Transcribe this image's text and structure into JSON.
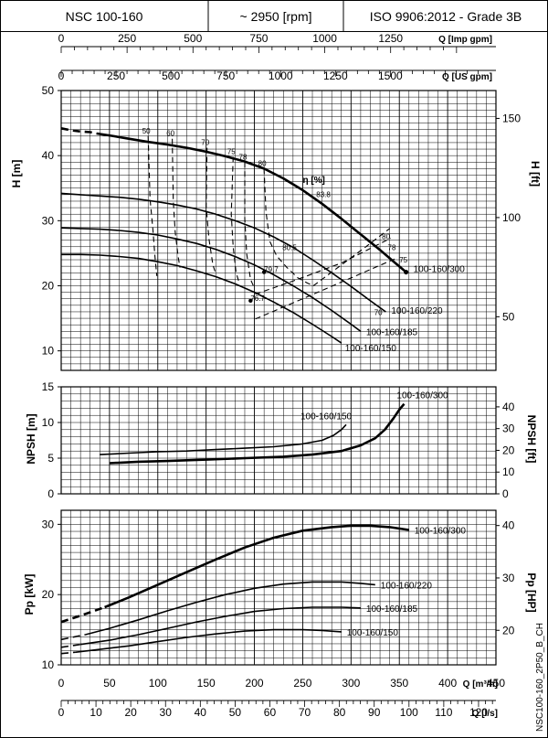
{
  "header": {
    "model": "NSC 100-160",
    "speed": "~ 2950 [rpm]",
    "standard": "ISO 9906:2012 - Grade 3B"
  },
  "side_code": "NSC100-160_2P50_B_CH",
  "chart_data": [
    {
      "id": "head",
      "type": "line",
      "xlabel": "Q [m³/h]",
      "ylabel": "H [m]",
      "ylabel_right": "H [ft]",
      "xlim": [
        0,
        450
      ],
      "ylim": [
        7,
        50
      ],
      "yticks": [
        10,
        20,
        30,
        40,
        50
      ],
      "yticks_right": [
        50,
        100,
        150
      ],
      "top_axis_imp": {
        "label": "Q [Imp gpm]",
        "ticks": [
          0,
          250,
          500,
          750,
          1000,
          1250
        ]
      },
      "top_axis_us": {
        "label": "Q [US gpm]",
        "ticks": [
          0,
          250,
          500,
          750,
          1000,
          1250,
          1500
        ]
      },
      "grid": true,
      "series": [
        {
          "name": "100-160/300",
          "dashed_until": 37,
          "x": [
            0,
            10,
            20,
            30,
            37,
            50,
            70,
            90,
            110,
            130,
            150,
            170,
            190,
            210,
            230,
            250,
            270,
            290,
            310,
            330,
            345,
            357
          ],
          "y": [
            44.2,
            43.9,
            43.7,
            43.6,
            43.4,
            43.1,
            42.6,
            42.1,
            41.7,
            41.2,
            40.6,
            39.9,
            39.1,
            38.0,
            36.5,
            34.7,
            32.6,
            30.3,
            27.9,
            25.5,
            23.6,
            22.1
          ]
        },
        {
          "name": "100-160/220",
          "x": [
            0,
            20,
            40,
            60,
            80,
            100,
            120,
            140,
            160,
            180,
            200,
            220,
            240,
            260,
            280,
            300,
            320,
            336
          ],
          "y": [
            34.2,
            34.0,
            33.8,
            33.6,
            33.3,
            32.9,
            32.4,
            31.8,
            31.0,
            30.0,
            28.9,
            27.5,
            25.9,
            24.0,
            22.0,
            19.9,
            17.7,
            16.0
          ]
        },
        {
          "name": "100-160/185",
          "x": [
            0,
            20,
            40,
            60,
            80,
            100,
            120,
            140,
            160,
            180,
            200,
            220,
            240,
            260,
            280,
            300,
            310
          ],
          "y": [
            28.9,
            28.8,
            28.7,
            28.5,
            28.2,
            27.8,
            27.2,
            26.5,
            25.6,
            24.5,
            23.2,
            21.7,
            20.0,
            18.2,
            16.2,
            14.1,
            13.0
          ]
        },
        {
          "name": "100-160/150",
          "x": [
            0,
            20,
            40,
            60,
            80,
            100,
            120,
            140,
            160,
            180,
            200,
            220,
            240,
            260,
            280,
            290
          ],
          "y": [
            24.8,
            24.8,
            24.7,
            24.5,
            24.2,
            23.7,
            23.1,
            22.3,
            21.4,
            20.3,
            19.0,
            17.5,
            15.9,
            14.1,
            12.2,
            11.2
          ]
        }
      ],
      "efficiency_label": "η [%]",
      "efficiency_curves": [
        {
          "label": "50",
          "x": [
            90,
            92,
            95,
            97,
            99
          ],
          "y": [
            43.0,
            33.3,
            28.5,
            24.6,
            21.5
          ]
        },
        {
          "label": "60",
          "x": [
            115,
            116,
            118,
            121,
            123
          ],
          "y": [
            42.6,
            33.1,
            28.3,
            24.5,
            22.8
          ]
        },
        {
          "label": "70",
          "x": [
            151,
            150,
            153,
            157,
            160
          ],
          "y": [
            41.2,
            32.2,
            27.2,
            23.2,
            21.9
          ]
        },
        {
          "label": "75",
          "x": [
            178,
            176,
            178,
            181,
            184
          ],
          "y": [
            39.8,
            31.0,
            26.0,
            22.0,
            20.6
          ]
        },
        {
          "label": "78",
          "x": [
            190,
            190,
            192,
            196,
            200
          ],
          "y": [
            39.0,
            30.3,
            24.9,
            21.0,
            19.6
          ]
        },
        {
          "label": "80",
          "x": [
            210,
            212,
            216,
            223,
            233,
            245,
            255,
            261
          ],
          "y": [
            38.0,
            31.4,
            26.8,
            24.6,
            22.9,
            21.2,
            20.4,
            20.0
          ]
        },
        {
          "label": "80",
          "x": [
            261,
            290,
            318,
            340
          ],
          "y": [
            20.0,
            23.2,
            26.3,
            28.8
          ]
        },
        {
          "label": "78",
          "x": [
            201,
            245,
            290,
            341
          ],
          "y": [
            18.7,
            21.0,
            23.5,
            27.3
          ]
        },
        {
          "label": "75",
          "x": [
            201,
            250,
            300,
            348
          ],
          "y": [
            14.9,
            18.0,
            21.2,
            24.3
          ]
        }
      ],
      "efficiency_points": [
        {
          "label": "83.8",
          "x": [
            264
          ],
          "y": [
            33.6
          ]
        },
        {
          "label": "80.5",
          "x": [
            229
          ],
          "y": [
            25.5
          ]
        },
        {
          "label": "79.7",
          "x": [
            210
          ],
          "y": [
            22.1
          ]
        },
        {
          "label": "76.7",
          "x": [
            196
          ],
          "y": [
            17.7
          ]
        },
        {
          "label": "80",
          "x": [
            332
          ],
          "y": [
            27.2
          ]
        },
        {
          "label": "78",
          "x": [
            338
          ],
          "y": [
            25.5
          ]
        },
        {
          "label": "75",
          "x": [
            350
          ],
          "y": [
            23.6
          ]
        },
        {
          "label": "70",
          "x": [
            324
          ],
          "y": [
            15.5
          ]
        }
      ]
    },
    {
      "id": "npsh",
      "type": "line",
      "xlabel": "Q [m³/h]",
      "ylabel": "NPSH [m]",
      "ylabel_right": "NPSH [ft]",
      "xlim": [
        0,
        450
      ],
      "ylim": [
        0,
        15
      ],
      "yticks": [
        0,
        5,
        10,
        15
      ],
      "yticks_right": [
        0,
        10,
        20,
        30,
        40
      ],
      "grid": true,
      "series": [
        {
          "name": "100-160/150",
          "x": [
            40,
            70,
            100,
            130,
            160,
            190,
            220,
            250,
            270,
            282,
            290,
            295
          ],
          "y": [
            5.5,
            5.7,
            5.9,
            6.0,
            6.2,
            6.4,
            6.6,
            7.0,
            7.5,
            8.2,
            9.0,
            9.7
          ]
        },
        {
          "name": "100-160/300",
          "x": [
            50,
            80,
            110,
            150,
            190,
            230,
            260,
            290,
            310,
            325,
            335,
            344,
            350,
            355
          ],
          "y": [
            4.3,
            4.5,
            4.6,
            4.8,
            5.0,
            5.2,
            5.5,
            6.0,
            6.8,
            7.8,
            9.0,
            10.6,
            11.8,
            12.6
          ]
        }
      ]
    },
    {
      "id": "power",
      "type": "line",
      "xlabel": "Q [m³/h]",
      "ylabel": "Pp [kW]",
      "ylabel_right": "Pp [HP]",
      "xlim": [
        0,
        450
      ],
      "ylim": [
        10,
        32
      ],
      "xticks": [
        0,
        50,
        100,
        150,
        200,
        250,
        300,
        350,
        400,
        450
      ],
      "yticks": [
        10,
        20,
        30
      ],
      "yticks_right": [
        20,
        30,
        40
      ],
      "bottom_axis_ls": {
        "label": "Q [l/s]",
        "ticks": [
          0,
          10,
          20,
          30,
          40,
          50,
          60,
          70,
          80,
          90,
          100,
          110,
          120
        ]
      },
      "grid": true,
      "series": [
        {
          "name": "100-160/300",
          "dashed_until": 45,
          "x": [
            0,
            20,
            45,
            70,
            100,
            130,
            160,
            190,
            220,
            250,
            280,
            300,
            320,
            340,
            360
          ],
          "y": [
            16.1,
            17.0,
            18.2,
            19.6,
            21.4,
            23.2,
            25.0,
            26.7,
            28.1,
            29.1,
            29.6,
            29.8,
            29.8,
            29.6,
            29.2
          ]
        },
        {
          "name": "100-160/220",
          "dashed_until": 25,
          "x": [
            0,
            25,
            50,
            80,
            110,
            140,
            170,
            200,
            230,
            260,
            290,
            310,
            325
          ],
          "y": [
            13.6,
            14.3,
            15.2,
            16.4,
            17.7,
            18.9,
            20.0,
            20.9,
            21.5,
            21.8,
            21.8,
            21.6,
            21.4
          ]
        },
        {
          "name": "100-160/185",
          "dashed_until": 20,
          "x": [
            0,
            20,
            50,
            80,
            110,
            140,
            170,
            200,
            230,
            260,
            290,
            310
          ],
          "y": [
            12.5,
            12.9,
            13.5,
            14.3,
            15.2,
            16.1,
            16.9,
            17.6,
            18.0,
            18.2,
            18.2,
            18.1
          ]
        },
        {
          "name": "100-160/150",
          "dashed_until": 15,
          "x": [
            0,
            15,
            40,
            70,
            100,
            130,
            160,
            190,
            220,
            250,
            270,
            290
          ],
          "y": [
            11.6,
            11.8,
            12.2,
            12.7,
            13.3,
            13.9,
            14.4,
            14.8,
            15.0,
            15.0,
            14.9,
            14.7
          ]
        }
      ]
    }
  ]
}
